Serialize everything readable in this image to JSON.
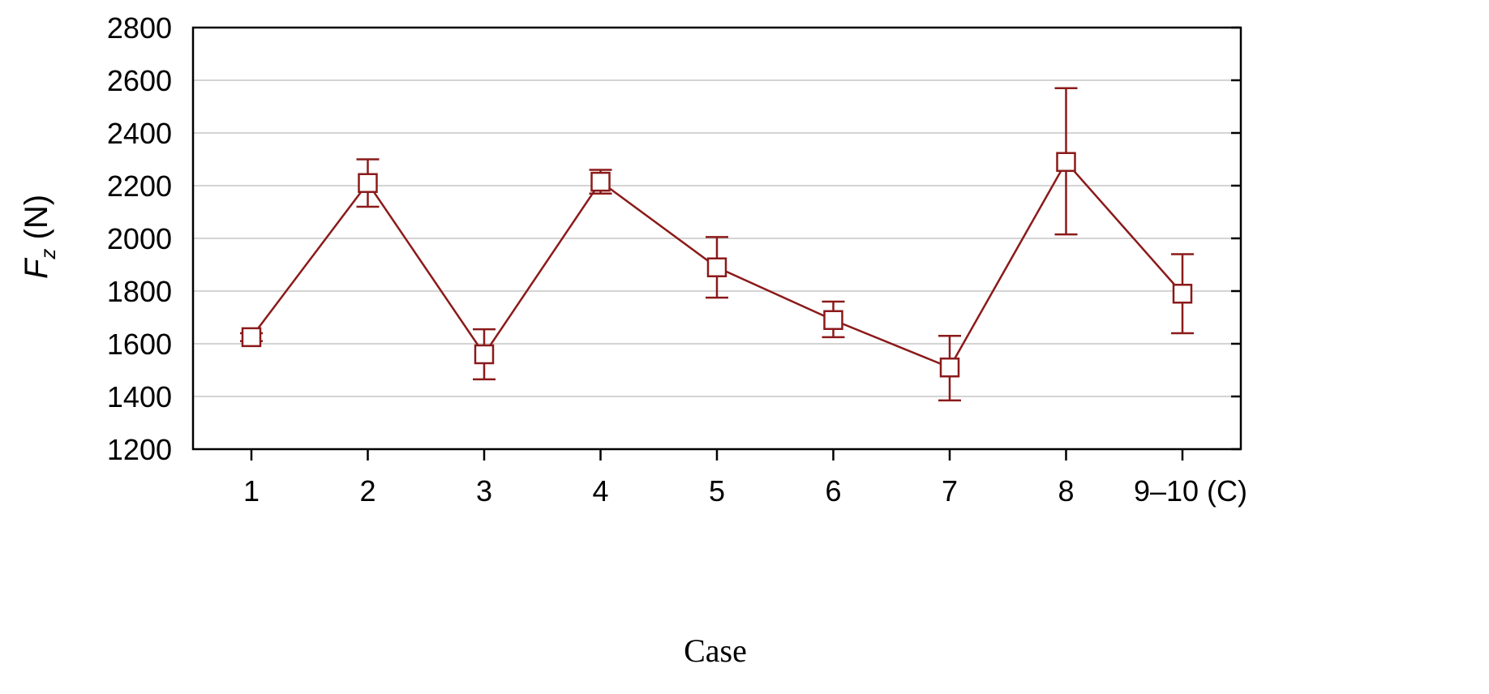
{
  "chart_data": {
    "type": "line",
    "categories": [
      "1",
      "2",
      "3",
      "4",
      "5",
      "6",
      "7",
      "8",
      "9–10 (C)"
    ],
    "series": [
      {
        "values": [
          1625,
          2210,
          1560,
          2215,
          1890,
          1690,
          1510,
          2290,
          1790
        ],
        "error_low": [
          1610,
          2120,
          1465,
          2170,
          1775,
          1625,
          1385,
          2015,
          1640
        ],
        "error_high": [
          1640,
          2300,
          1655,
          2260,
          2005,
          1760,
          1630,
          2570,
          1940
        ],
        "color": "#8b1a1a",
        "marker": "open-square"
      }
    ],
    "xlabel": "Case",
    "ylabel_main": "F",
    "ylabel_sub": "z",
    "ylabel_unit": " (N)",
    "ylim": [
      1200,
      2800
    ],
    "yticks": [
      1200,
      1400,
      1600,
      1800,
      2000,
      2200,
      2400,
      2600,
      2800
    ],
    "grid": "horizontal"
  }
}
